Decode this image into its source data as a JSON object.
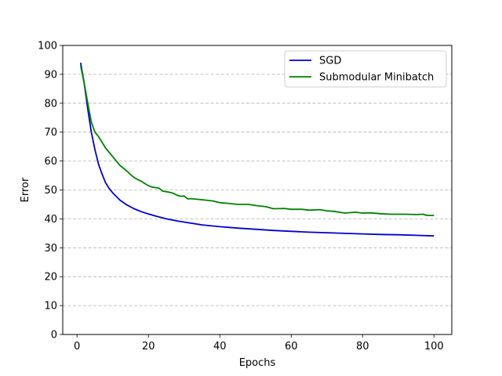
{
  "chart_data": {
    "type": "line",
    "title": "",
    "xlabel": "Epochs",
    "ylabel": "Error",
    "xlim": [
      -4,
      105
    ],
    "ylim": [
      0,
      100
    ],
    "xticks": [
      0,
      20,
      40,
      60,
      80,
      100
    ],
    "yticks": [
      0,
      10,
      20,
      30,
      40,
      50,
      60,
      70,
      80,
      90,
      100
    ],
    "grid": "horizontal-dashed",
    "legend_position": "top-right",
    "series": [
      {
        "name": "SGD",
        "color": "#0000cc",
        "x": [
          1,
          2,
          3,
          4,
          5,
          6,
          7,
          8,
          9,
          10,
          12,
          14,
          16,
          18,
          20,
          22,
          25,
          28,
          30,
          35,
          40,
          45,
          50,
          55,
          60,
          65,
          70,
          75,
          80,
          85,
          90,
          95,
          100
        ],
        "y": [
          94.0,
          87.0,
          78.0,
          70.0,
          64.0,
          59.0,
          55.5,
          52.5,
          50.5,
          49.0,
          46.5,
          44.8,
          43.5,
          42.5,
          41.7,
          41.0,
          40.0,
          39.3,
          38.9,
          37.9,
          37.3,
          36.8,
          36.4,
          36.0,
          35.7,
          35.4,
          35.2,
          35.0,
          34.8,
          34.6,
          34.5,
          34.3,
          34.1
        ]
      },
      {
        "name": "Submodular Minibatch",
        "color": "#008000",
        "x": [
          1,
          2,
          3,
          4,
          5,
          6,
          7,
          8,
          9,
          10,
          11,
          12,
          13,
          14,
          15,
          16,
          17,
          18,
          19,
          20,
          21,
          22,
          23,
          24,
          25,
          26,
          27,
          28,
          29,
          30,
          31,
          32,
          35,
          38,
          40,
          42,
          45,
          48,
          50,
          53,
          55,
          58,
          60,
          63,
          65,
          68,
          70,
          72,
          75,
          78,
          80,
          82,
          85,
          88,
          90,
          92,
          95,
          97,
          98,
          100
        ],
        "y": [
          93.0,
          87.0,
          80.0,
          73.5,
          70.0,
          68.5,
          66.5,
          64.5,
          63.0,
          61.5,
          60.0,
          58.5,
          57.5,
          56.5,
          55.3,
          54.3,
          53.6,
          53.0,
          52.2,
          51.5,
          51.0,
          50.8,
          50.6,
          49.6,
          49.4,
          49.2,
          48.8,
          48.2,
          47.8,
          47.9,
          46.9,
          47.0,
          46.6,
          46.2,
          45.6,
          45.4,
          45.0,
          45.0,
          44.6,
          44.2,
          43.5,
          43.6,
          43.3,
          43.3,
          43.0,
          43.2,
          42.8,
          42.6,
          42.0,
          42.3,
          42.0,
          42.1,
          41.8,
          41.6,
          41.6,
          41.6,
          41.5,
          41.6,
          41.2,
          41.2
        ]
      }
    ]
  }
}
